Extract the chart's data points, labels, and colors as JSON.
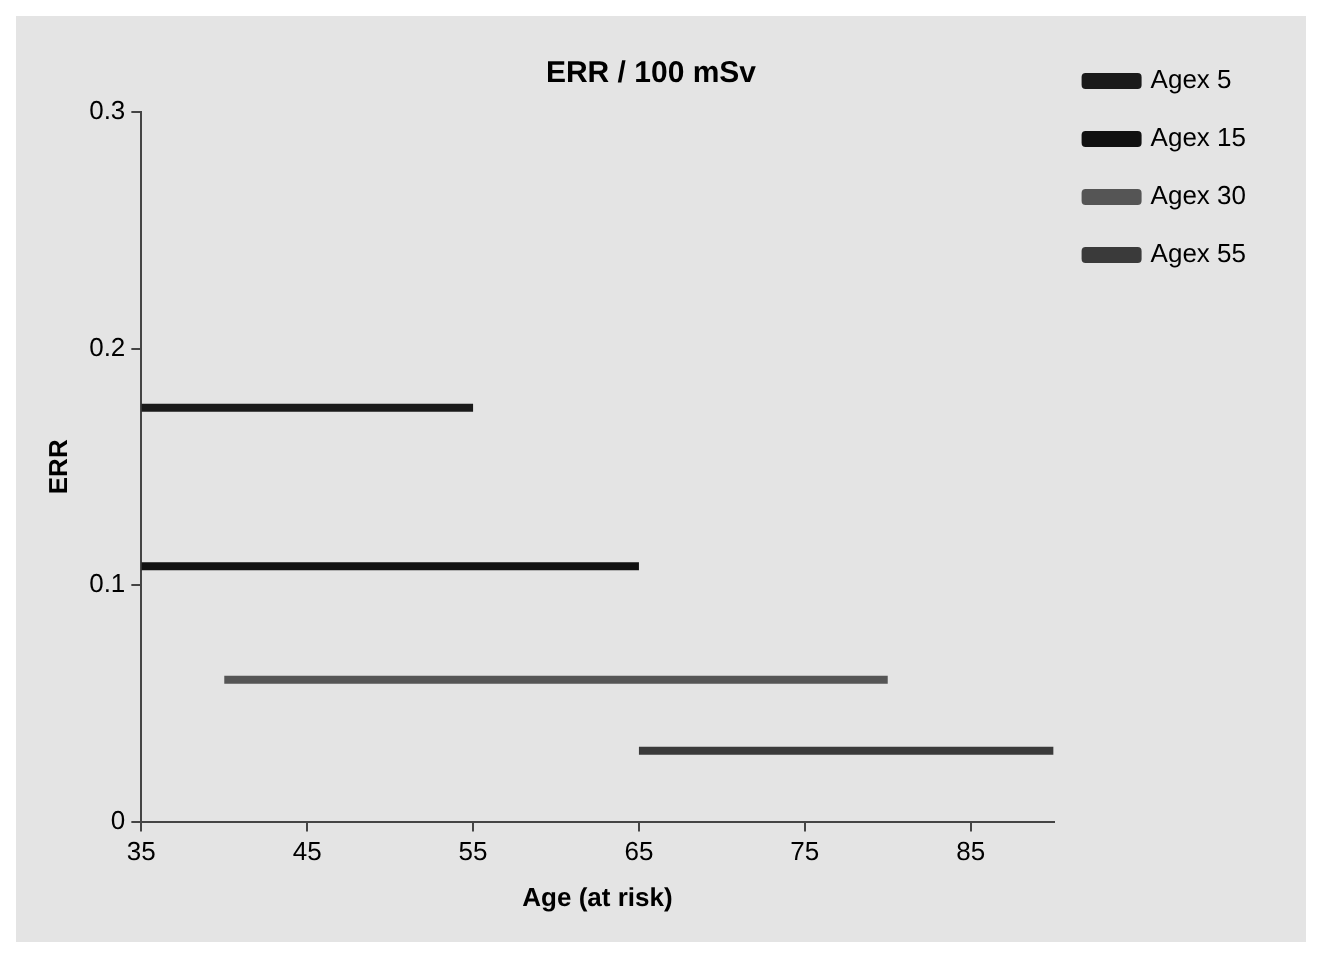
{
  "chart_data": {
    "type": "line",
    "title": "ERR / 100 mSv",
    "xlabel": "Age (at risk)",
    "ylabel": "ERR",
    "xlim": [
      35,
      90
    ],
    "xticks": [
      35,
      45,
      55,
      65,
      75,
      85
    ],
    "ylim": [
      0,
      0.3
    ],
    "yticks": [
      0,
      0.1,
      0.2,
      0.3
    ],
    "grid": false,
    "legend": "top right",
    "marker": "none",
    "line_style": "solid",
    "series": [
      {
        "name": "Agex 5",
        "color": "#1a1a1a",
        "x": [
          35,
          55
        ],
        "values": [
          0.175,
          0.175
        ]
      },
      {
        "name": "Agex 15",
        "color": "#111111",
        "x": [
          35,
          65
        ],
        "values": [
          0.108,
          0.108
        ]
      },
      {
        "name": "Agex 30",
        "color": "#555555",
        "x": [
          40,
          80
        ],
        "values": [
          0.06,
          0.06
        ]
      },
      {
        "name": "Agex 55",
        "color": "#3a3a3a",
        "x": [
          65,
          90
        ],
        "values": [
          0.03,
          0.03
        ]
      }
    ]
  }
}
